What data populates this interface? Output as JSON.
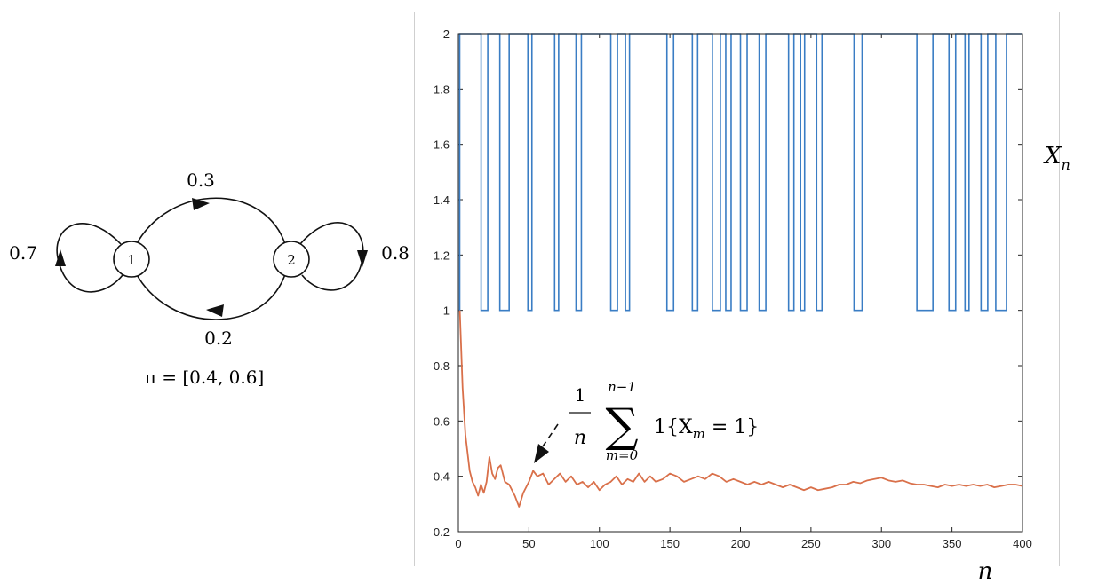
{
  "diagram": {
    "nodes": [
      {
        "id": "1",
        "label": "1"
      },
      {
        "id": "2",
        "label": "2"
      }
    ],
    "edges": [
      {
        "from": "1",
        "to": "2",
        "label": "0.3"
      },
      {
        "from": "2",
        "to": "1",
        "label": "0.2"
      },
      {
        "from": "1",
        "to": "1",
        "label": "0.7"
      },
      {
        "from": "2",
        "to": "2",
        "label": "0.8"
      }
    ],
    "stationary": "π = [0.4, 0.6]"
  },
  "chart_data": {
    "type": "line",
    "x_range": [
      0,
      400
    ],
    "ylim": [
      0.2,
      2
    ],
    "x_ticks": [
      "0",
      "50",
      "100",
      "150",
      "200",
      "250",
      "300",
      "350",
      "400"
    ],
    "y_ticks": [
      "0.2",
      "0.4",
      "0.6",
      "0.8",
      "1",
      "1.2",
      "1.4",
      "1.6",
      "1.8",
      "2"
    ],
    "xlabel": "n",
    "series_labels": {
      "state": "X",
      "state_sub": "n",
      "average": {
        "frac_num": "1",
        "frac_den": "n",
        "sum_upper": "n−1",
        "sum_lower": "m=0",
        "indicator": "1{X",
        "indicator_sub": "m",
        "indicator_tail": " = 1}"
      }
    },
    "colors": {
      "state": "#3a7dc4",
      "average": "#d9704a"
    },
    "series": [
      {
        "name": "X_n",
        "style": "step",
        "values": [
          1,
          2,
          2,
          2,
          2,
          2,
          2,
          2,
          2,
          2,
          2,
          2,
          2,
          2,
          2,
          2,
          2,
          1,
          1,
          1,
          1,
          1,
          2,
          2,
          2,
          2,
          2,
          2,
          2,
          2,
          2,
          1,
          1,
          1,
          1,
          1,
          1,
          1,
          2,
          2,
          2,
          2,
          2,
          2,
          2,
          2,
          2,
          2,
          2,
          2,
          2,
          2,
          1,
          1,
          1,
          2,
          2,
          2,
          2,
          2,
          2,
          2,
          2,
          2,
          2,
          2,
          2,
          2,
          2,
          2,
          2,
          2,
          1,
          1,
          1,
          2,
          2,
          2,
          2,
          2,
          2,
          2,
          2,
          2,
          2,
          2,
          2,
          2,
          1,
          1,
          1,
          1,
          2,
          2,
          2,
          2,
          2,
          2,
          2,
          2,
          2,
          2,
          2,
          2,
          2,
          2,
          2,
          2,
          2,
          2,
          2,
          2,
          2,
          2,
          1,
          1,
          1,
          1,
          1,
          2,
          2,
          2,
          2,
          2,
          2,
          1,
          1,
          1,
          2,
          2,
          2,
          2,
          2,
          2,
          2,
          2,
          2,
          2,
          2,
          2,
          2,
          2,
          2,
          2,
          2,
          2,
          2,
          2,
          2,
          2,
          2,
          2,
          2,
          2,
          2,
          2,
          1,
          1,
          1,
          1,
          1,
          2,
          2,
          2,
          2,
          2,
          2,
          2,
          2,
          2,
          2,
          2,
          2,
          2,
          2,
          1,
          1,
          1,
          1,
          2,
          2,
          2,
          2,
          2,
          2,
          2,
          2,
          2,
          2,
          2,
          1,
          1,
          1,
          1,
          1,
          1,
          2,
          2,
          2,
          2,
          1,
          1,
          1,
          1,
          2,
          2,
          2,
          2,
          2,
          2,
          2,
          1,
          1,
          1,
          1,
          1,
          2,
          2,
          2,
          2,
          2,
          2,
          2,
          2,
          2,
          1,
          1,
          1,
          1,
          1,
          2,
          2,
          2,
          2,
          2,
          2,
          2,
          2,
          2,
          2,
          2,
          2,
          2,
          2,
          2,
          2,
          2,
          1,
          1,
          1,
          1,
          2,
          2,
          2,
          2,
          2,
          1,
          1,
          1,
          2,
          2,
          2,
          2,
          2,
          2,
          2,
          2,
          2,
          1,
          1,
          1,
          1,
          2,
          2,
          2,
          2,
          2,
          2,
          2,
          2,
          2,
          2,
          2,
          2,
          2,
          2,
          2,
          2,
          2,
          2,
          2,
          2,
          2,
          2,
          2,
          2,
          1,
          1,
          1,
          1,
          1,
          1,
          2,
          2,
          2,
          2,
          2,
          2,
          2,
          2,
          2,
          2,
          2,
          2,
          2,
          2,
          2,
          2,
          2,
          2,
          2,
          2,
          2,
          2,
          2,
          2,
          2,
          2,
          2,
          2,
          2,
          2,
          2,
          2,
          2,
          2,
          2,
          2,
          2,
          2,
          2,
          2,
          2,
          1,
          1,
          1,
          1,
          1,
          1,
          1,
          1,
          1,
          1,
          1,
          1,
          2,
          2,
          2,
          2,
          2,
          2,
          2,
          2,
          2,
          2,
          2,
          2,
          1,
          1,
          1,
          1,
          1,
          2,
          2,
          2,
          2,
          2,
          2,
          2,
          1,
          1,
          1,
          2,
          2,
          2,
          2,
          2,
          2,
          2,
          2,
          2,
          1,
          1,
          1,
          1,
          1,
          2,
          2,
          2,
          2,
          2,
          2,
          1,
          1,
          1,
          1,
          1,
          1,
          1,
          1,
          2,
          2,
          2,
          2,
          2,
          2,
          2,
          2,
          2,
          2,
          2,
          2
        ]
      },
      {
        "name": "running average",
        "style": "line",
        "x": [
          1,
          3,
          5,
          8,
          10,
          12,
          14,
          16,
          18,
          20,
          22,
          24,
          26,
          28,
          30,
          33,
          36,
          40,
          43,
          46,
          50,
          53,
          56,
          60,
          64,
          68,
          72,
          76,
          80,
          84,
          88,
          92,
          96,
          100,
          104,
          108,
          112,
          116,
          120,
          124,
          128,
          132,
          136,
          140,
          145,
          150,
          155,
          160,
          165,
          170,
          175,
          180,
          185,
          190,
          195,
          200,
          205,
          210,
          215,
          220,
          225,
          230,
          235,
          240,
          245,
          250,
          255,
          260,
          265,
          270,
          275,
          280,
          285,
          290,
          295,
          300,
          305,
          310,
          315,
          320,
          325,
          330,
          335,
          340,
          345,
          350,
          355,
          360,
          365,
          370,
          375,
          380,
          385,
          390,
          395,
          400
        ],
        "values": [
          1.0,
          0.72,
          0.55,
          0.42,
          0.38,
          0.36,
          0.33,
          0.37,
          0.34,
          0.38,
          0.47,
          0.41,
          0.39,
          0.43,
          0.44,
          0.38,
          0.37,
          0.33,
          0.29,
          0.34,
          0.38,
          0.42,
          0.4,
          0.41,
          0.37,
          0.39,
          0.41,
          0.38,
          0.4,
          0.37,
          0.38,
          0.36,
          0.38,
          0.35,
          0.37,
          0.38,
          0.4,
          0.37,
          0.39,
          0.38,
          0.41,
          0.38,
          0.4,
          0.38,
          0.39,
          0.41,
          0.4,
          0.38,
          0.39,
          0.4,
          0.39,
          0.41,
          0.4,
          0.38,
          0.39,
          0.38,
          0.37,
          0.38,
          0.37,
          0.38,
          0.37,
          0.36,
          0.37,
          0.36,
          0.35,
          0.36,
          0.35,
          0.355,
          0.36,
          0.37,
          0.37,
          0.38,
          0.375,
          0.385,
          0.39,
          0.395,
          0.385,
          0.38,
          0.385,
          0.375,
          0.37,
          0.37,
          0.365,
          0.36,
          0.37,
          0.365,
          0.37,
          0.365,
          0.37,
          0.365,
          0.37,
          0.36,
          0.365,
          0.37,
          0.37,
          0.365
        ]
      }
    ]
  }
}
